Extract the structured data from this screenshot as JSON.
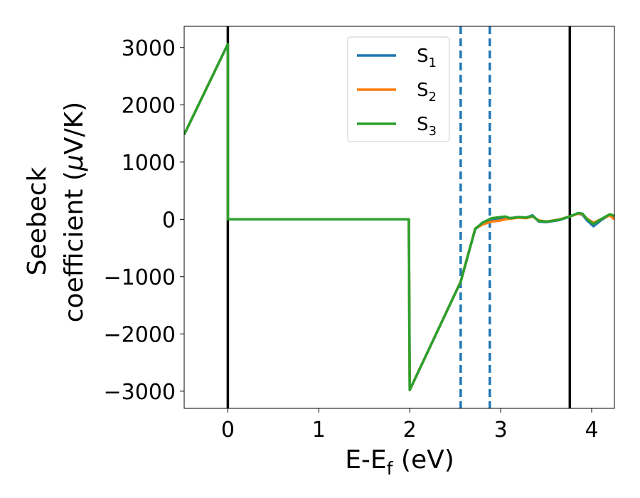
{
  "chart_data": {
    "type": "line",
    "xlabel": "E-E",
    "xlabel_sub": "f",
    "xlabel_unit": " (eV)",
    "ylabel_line1": "Seebeck",
    "ylabel_line2": "coefficient  (",
    "ylabel_mu": "μ",
    "ylabel_unit": "V/K)",
    "xlim": [
      -0.48,
      4.25
    ],
    "ylim": [
      -3300,
      3370
    ],
    "xticks": [
      0,
      1,
      2,
      3,
      4
    ],
    "xtick_labels": [
      "0",
      "1",
      "2",
      "3",
      "4"
    ],
    "yticks": [
      3000,
      2000,
      1000,
      0,
      -1000,
      -2000,
      -3000
    ],
    "ytick_labels": [
      "3000",
      "2000",
      "1000",
      "0",
      "−1000",
      "−2000",
      "−3000"
    ],
    "vlines_solid": [
      0.0,
      3.76
    ],
    "vlines_dashed": [
      2.56,
      2.88
    ],
    "legend_position": "top-center",
    "series": [
      {
        "name": "S",
        "subscript": "1",
        "color": "#1f77b4",
        "x": [
          -0.48,
          0.0,
          0.0,
          1.99,
          1.99,
          2.0,
          2.56,
          2.72,
          2.8,
          2.9,
          3.0,
          3.05,
          3.1,
          3.2,
          3.28,
          3.35,
          3.42,
          3.5,
          3.58,
          3.65,
          3.76,
          3.85,
          3.9,
          3.95,
          4.02,
          4.1,
          4.2,
          4.25
        ],
        "y": [
          1480,
          3060,
          0,
          0,
          0,
          -2980,
          -1090,
          -170,
          -80,
          -20,
          10,
          30,
          20,
          40,
          30,
          70,
          -40,
          -50,
          -30,
          -10,
          50,
          100,
          80,
          -20,
          -120,
          -20,
          80,
          40
        ]
      },
      {
        "name": "S",
        "subscript": "2",
        "color": "#ff7f0e",
        "x": [
          -0.48,
          0.0,
          0.0,
          1.99,
          1.99,
          2.0,
          2.56,
          2.72,
          2.8,
          2.9,
          3.0,
          3.05,
          3.1,
          3.2,
          3.28,
          3.35,
          3.42,
          3.5,
          3.58,
          3.65,
          3.76,
          3.85,
          3.9,
          3.95,
          4.02,
          4.1,
          4.2,
          4.25
        ],
        "y": [
          1480,
          3060,
          0,
          0,
          0,
          -2980,
          -1090,
          -160,
          -90,
          -40,
          -20,
          0,
          10,
          30,
          20,
          50,
          -20,
          -40,
          -20,
          0,
          50,
          100,
          90,
          10,
          -60,
          0,
          70,
          0
        ]
      },
      {
        "name": "S",
        "subscript": "3",
        "color": "#2ca02c",
        "x": [
          -0.48,
          0.0,
          0.0,
          1.99,
          1.99,
          2.0,
          2.56,
          2.72,
          2.8,
          2.9,
          3.0,
          3.05,
          3.1,
          3.2,
          3.28,
          3.35,
          3.42,
          3.5,
          3.58,
          3.65,
          3.76,
          3.85,
          3.9,
          3.95,
          4.02,
          4.1,
          4.2,
          4.25
        ],
        "y": [
          1480,
          3060,
          0,
          0,
          0,
          -2980,
          -1090,
          -165,
          -60,
          20,
          40,
          50,
          20,
          40,
          30,
          60,
          -30,
          -40,
          -25,
          -5,
          50,
          110,
          100,
          0,
          -80,
          0,
          90,
          60
        ]
      }
    ]
  }
}
